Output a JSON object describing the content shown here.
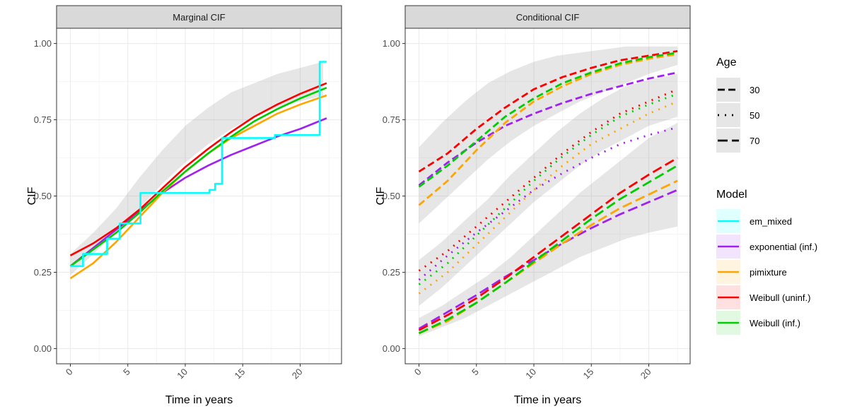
{
  "chart_data": [
    {
      "type": "line",
      "title": "Marginal CIF",
      "xlabel": "Time in years",
      "ylabel": "CIF",
      "xlim": [
        -1.2,
        23.6
      ],
      "ylim": [
        -0.05,
        1.05
      ],
      "xticks": [
        0,
        5,
        10,
        15,
        20
      ],
      "xtick_labels": [
        "0",
        "5",
        "10",
        "15",
        "20"
      ],
      "yticks": [
        0,
        0.25,
        0.5,
        0.75,
        1
      ],
      "ytick_labels": [
        "0.00",
        "0.25",
        "0.50",
        "0.75",
        "1.00"
      ],
      "grid": true,
      "ribbon": {
        "x": [
          0,
          2,
          4,
          6,
          8,
          10,
          12,
          14,
          16,
          18,
          20,
          22
        ],
        "lower": [
          0.24,
          0.31,
          0.38,
          0.46,
          0.54,
          0.61,
          0.67,
          0.72,
          0.76,
          0.79,
          0.81,
          0.83
        ],
        "upper": [
          0.31,
          0.38,
          0.46,
          0.56,
          0.65,
          0.73,
          0.79,
          0.84,
          0.87,
          0.9,
          0.92,
          0.94
        ]
      },
      "series": [
        {
          "name": "exponential (inf.)",
          "line": "solid",
          "x": [
            0,
            2,
            4,
            6,
            8,
            10,
            12,
            14,
            16,
            18,
            20,
            22.3
          ],
          "y": [
            0.27,
            0.33,
            0.39,
            0.45,
            0.51,
            0.56,
            0.6,
            0.635,
            0.665,
            0.695,
            0.72,
            0.755
          ]
        },
        {
          "name": "pimixture",
          "line": "solid",
          "x": [
            0,
            2,
            4,
            6,
            8,
            10,
            12,
            14,
            16,
            18,
            20,
            22.3
          ],
          "y": [
            0.23,
            0.28,
            0.35,
            0.43,
            0.51,
            0.58,
            0.64,
            0.69,
            0.73,
            0.77,
            0.8,
            0.83
          ]
        },
        {
          "name": "Weibull (uninf.)",
          "line": "solid",
          "x": [
            0,
            2,
            4,
            6,
            8,
            10,
            12,
            14,
            16,
            18,
            20,
            22.3
          ],
          "y": [
            0.305,
            0.345,
            0.395,
            0.455,
            0.525,
            0.595,
            0.655,
            0.71,
            0.76,
            0.8,
            0.835,
            0.87
          ]
        },
        {
          "name": "Weibull (inf.)",
          "line": "solid",
          "x": [
            0,
            2,
            4,
            6,
            8,
            10,
            12,
            14,
            16,
            18,
            20,
            22.3
          ],
          "y": [
            0.27,
            0.325,
            0.38,
            0.445,
            0.515,
            0.58,
            0.64,
            0.695,
            0.745,
            0.785,
            0.82,
            0.855
          ]
        },
        {
          "name": "em_mixed",
          "line": "step",
          "x": [
            0,
            1.1,
            1.1,
            3.2,
            3.2,
            4.3,
            4.3,
            6.1,
            6.1,
            12.1,
            12.1,
            12.6,
            12.6,
            13.2,
            13.2,
            17.8,
            17.8,
            21.7,
            21.7,
            22.3
          ],
          "y": [
            0.27,
            0.27,
            0.31,
            0.31,
            0.36,
            0.36,
            0.41,
            0.41,
            0.51,
            0.51,
            0.52,
            0.52,
            0.54,
            0.54,
            0.69,
            0.69,
            0.7,
            0.7,
            0.94,
            0.94
          ]
        }
      ]
    },
    {
      "type": "line",
      "title": "Conditional CIF",
      "xlabel": "Time in years",
      "ylabel": "CIF",
      "xlim": [
        -1.2,
        23.6
      ],
      "ylim": [
        -0.05,
        1.05
      ],
      "xticks": [
        0,
        5,
        10,
        15,
        20
      ],
      "xtick_labels": [
        "0",
        "5",
        "10",
        "15",
        "20"
      ],
      "yticks": [
        0,
        0.25,
        0.5,
        0.75,
        1
      ],
      "ytick_labels": [
        "0.00",
        "0.25",
        "0.50",
        "0.75",
        "1.00"
      ],
      "grid": true,
      "ribbons": [
        {
          "age": "30",
          "x": [
            0,
            2,
            4,
            6,
            8,
            10,
            12,
            14,
            16,
            18,
            20,
            22.5
          ],
          "lower": [
            0.41,
            0.48,
            0.55,
            0.62,
            0.68,
            0.73,
            0.77,
            0.81,
            0.84,
            0.87,
            0.9,
            0.93
          ],
          "upper": [
            0.66,
            0.74,
            0.81,
            0.87,
            0.91,
            0.94,
            0.96,
            0.97,
            0.98,
            0.99,
            0.99,
            0.99
          ]
        },
        {
          "age": "50",
          "x": [
            0,
            2,
            4,
            6,
            8,
            10,
            12,
            14,
            16,
            18,
            20,
            22.5
          ],
          "lower": [
            0.14,
            0.2,
            0.27,
            0.34,
            0.41,
            0.48,
            0.54,
            0.6,
            0.65,
            0.69,
            0.73,
            0.76
          ],
          "upper": [
            0.29,
            0.35,
            0.42,
            0.49,
            0.57,
            0.64,
            0.71,
            0.77,
            0.82,
            0.86,
            0.88,
            0.9
          ]
        },
        {
          "age": "70",
          "x": [
            0,
            2,
            4,
            6,
            8,
            10,
            12,
            14,
            16,
            18,
            20,
            22.5
          ],
          "lower": [
            0.04,
            0.07,
            0.1,
            0.14,
            0.18,
            0.22,
            0.26,
            0.3,
            0.33,
            0.36,
            0.38,
            0.4
          ],
          "upper": [
            0.1,
            0.14,
            0.19,
            0.24,
            0.3,
            0.37,
            0.44,
            0.51,
            0.57,
            0.63,
            0.69,
            0.74
          ]
        }
      ],
      "series": [
        {
          "model": "exponential (inf.)",
          "age": "30",
          "x": [
            0,
            2.5,
            5,
            7.5,
            10,
            12.5,
            15,
            17.5,
            20,
            22.5
          ],
          "y": [
            0.535,
            0.61,
            0.675,
            0.73,
            0.77,
            0.805,
            0.835,
            0.86,
            0.885,
            0.905
          ]
        },
        {
          "model": "pimixture",
          "age": "30",
          "x": [
            0,
            2.5,
            5,
            7.5,
            10,
            12.5,
            15,
            17.5,
            20,
            22.5
          ],
          "y": [
            0.47,
            0.55,
            0.65,
            0.74,
            0.81,
            0.86,
            0.9,
            0.93,
            0.95,
            0.965
          ]
        },
        {
          "model": "Weibull (uninf.)",
          "age": "30",
          "x": [
            0,
            2.5,
            5,
            7.5,
            10,
            12.5,
            15,
            17.5,
            20,
            22.5
          ],
          "y": [
            0.58,
            0.64,
            0.72,
            0.79,
            0.85,
            0.89,
            0.92,
            0.945,
            0.96,
            0.975
          ]
        },
        {
          "model": "Weibull (inf.)",
          "age": "30",
          "x": [
            0,
            2.5,
            5,
            7.5,
            10,
            12.5,
            15,
            17.5,
            20,
            22.5
          ],
          "y": [
            0.53,
            0.6,
            0.68,
            0.76,
            0.82,
            0.87,
            0.905,
            0.935,
            0.955,
            0.97
          ]
        },
        {
          "model": "exponential (inf.)",
          "age": "50",
          "x": [
            0,
            2.5,
            5,
            7.5,
            10,
            12.5,
            15,
            17.5,
            20,
            22.5
          ],
          "y": [
            0.225,
            0.305,
            0.38,
            0.45,
            0.52,
            0.575,
            0.625,
            0.67,
            0.7,
            0.725
          ]
        },
        {
          "model": "pimixture",
          "age": "50",
          "x": [
            0,
            2.5,
            5,
            7.5,
            10,
            12.5,
            15,
            17.5,
            20,
            22.5
          ],
          "y": [
            0.18,
            0.25,
            0.34,
            0.43,
            0.52,
            0.6,
            0.67,
            0.72,
            0.77,
            0.81
          ]
        },
        {
          "model": "Weibull (uninf.)",
          "age": "50",
          "x": [
            0,
            2.5,
            5,
            7.5,
            10,
            12.5,
            15,
            17.5,
            20,
            22.5
          ],
          "y": [
            0.255,
            0.32,
            0.4,
            0.48,
            0.56,
            0.64,
            0.71,
            0.77,
            0.81,
            0.85
          ]
        },
        {
          "model": "Weibull (inf.)",
          "age": "50",
          "x": [
            0,
            2.5,
            5,
            7.5,
            10,
            12.5,
            15,
            17.5,
            20,
            22.5
          ],
          "y": [
            0.21,
            0.28,
            0.37,
            0.46,
            0.55,
            0.63,
            0.7,
            0.76,
            0.8,
            0.835
          ]
        },
        {
          "model": "exponential (inf.)",
          "age": "70",
          "x": [
            0,
            2.5,
            5,
            7.5,
            10,
            12.5,
            15,
            17.5,
            20,
            22.5
          ],
          "y": [
            0.065,
            0.12,
            0.175,
            0.235,
            0.29,
            0.345,
            0.395,
            0.44,
            0.48,
            0.52
          ]
        },
        {
          "model": "pimixture",
          "age": "70",
          "x": [
            0,
            2.5,
            5,
            7.5,
            10,
            12.5,
            15,
            17.5,
            20,
            22.5
          ],
          "y": [
            0.05,
            0.09,
            0.15,
            0.215,
            0.28,
            0.345,
            0.405,
            0.46,
            0.505,
            0.55
          ]
        },
        {
          "model": "Weibull (uninf.)",
          "age": "70",
          "x": [
            0,
            2.5,
            5,
            7.5,
            10,
            12.5,
            15,
            17.5,
            20,
            22.5
          ],
          "y": [
            0.06,
            0.11,
            0.165,
            0.23,
            0.3,
            0.37,
            0.44,
            0.51,
            0.57,
            0.625
          ]
        },
        {
          "model": "Weibull (inf.)",
          "age": "70",
          "x": [
            0,
            2.5,
            5,
            7.5,
            10,
            12.5,
            15,
            17.5,
            20,
            22.5
          ],
          "y": [
            0.05,
            0.095,
            0.15,
            0.215,
            0.285,
            0.355,
            0.425,
            0.49,
            0.545,
            0.6
          ]
        }
      ]
    }
  ],
  "legend": {
    "placement": "right",
    "age": {
      "title": "Age",
      "entries": [
        {
          "label": "30",
          "linetype": "dashed"
        },
        {
          "label": "50",
          "linetype": "dotted"
        },
        {
          "label": "70",
          "linetype": "longdash"
        }
      ]
    },
    "model": {
      "title": "Model",
      "entries": [
        {
          "label": "em_mixed",
          "color": "#00FFFF"
        },
        {
          "label": "exponential (inf.)",
          "color": "#A020F0"
        },
        {
          "label": "pimixture",
          "color": "#FFA500"
        },
        {
          "label": "Weibull (uninf.)",
          "color": "#FF0000"
        },
        {
          "label": "Weibull (inf.)",
          "color": "#00CD00"
        }
      ]
    }
  }
}
